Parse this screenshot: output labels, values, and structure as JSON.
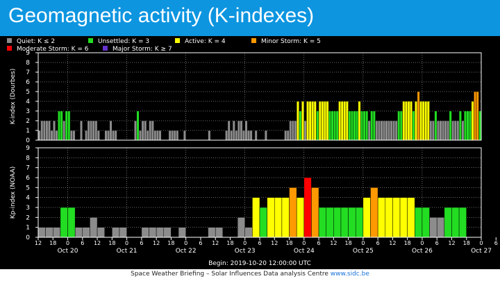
{
  "header": {
    "title": "Geomagnetic activity (K-indexes)"
  },
  "footer": {
    "text": "Space Weather Briefing – Solar Influences Data analysis Centre ",
    "link": "www.sidc.be"
  },
  "chart_data": {
    "type": "bar",
    "legend": [
      {
        "label": "Quiet: K ≤ 2",
        "color": "#8c8c8c"
      },
      {
        "label": "Unsettled: K = 3",
        "color": "#22dd22"
      },
      {
        "label": "Active: K = 4",
        "color": "#ffff00"
      },
      {
        "label": "Minor Storm: K = 5",
        "color": "#ff9900"
      },
      {
        "label": "Moderate Storm: K = 6",
        "color": "#ff0000"
      },
      {
        "label": "Major Storm: K ≥ 7",
        "color": "#6633cc"
      }
    ],
    "legend_placement": "top-left",
    "x_tick_labels": [
      "12",
      "18",
      "0",
      "6",
      "12",
      "18",
      "0",
      "6",
      "12",
      "18",
      "0",
      "6",
      "12",
      "18",
      "0",
      "6",
      "12",
      "18",
      "0",
      "6",
      "12",
      "18",
      "0",
      "6",
      "12",
      "18",
      "0",
      "6",
      "12",
      "18",
      "0",
      "6",
      "12",
      "18",
      "0",
      "6"
    ],
    "date_labels": [
      "Oct 20",
      "Oct 21",
      "Oct 22",
      "Oct 23",
      "Oct 24",
      "Oct 25",
      "Oct 26",
      "Oct 27"
    ],
    "xlabel": "Begin: 2019-10-20 12:00:00 UTC",
    "ylim": [
      0,
      9
    ],
    "y_ticks": [
      0,
      1,
      2,
      3,
      4,
      5,
      6,
      7,
      8,
      9
    ],
    "grid": true,
    "panels": [
      {
        "name": "dourbes",
        "ylabel": "K-index (Dourbes)",
        "resolution_hours": 1,
        "values": [
          1,
          2,
          2,
          2,
          2,
          1,
          2,
          1,
          3,
          3,
          2,
          3,
          3,
          1,
          1,
          0,
          0,
          2,
          0,
          1,
          2,
          2,
          2,
          2,
          1,
          0,
          0,
          1,
          1,
          2,
          1,
          1,
          0,
          0,
          0,
          0,
          0,
          0,
          0,
          2,
          3,
          1,
          2,
          2,
          1,
          2,
          2,
          1,
          1,
          1,
          0,
          0,
          0,
          1,
          1,
          1,
          1,
          0,
          0,
          1,
          0,
          0,
          0,
          0,
          0,
          0,
          0,
          0,
          0,
          1,
          0,
          0,
          0,
          0,
          0,
          0,
          1,
          2,
          1,
          2,
          1,
          2,
          2,
          1,
          2,
          1,
          1,
          0,
          1,
          0,
          0,
          0,
          1,
          0,
          0,
          0,
          0,
          0,
          0,
          0,
          1,
          1,
          2,
          2,
          2,
          4,
          3,
          4,
          2,
          4,
          4,
          4,
          4,
          3,
          4,
          4,
          4,
          4,
          3,
          3,
          3,
          3,
          4,
          4,
          4,
          4,
          3,
          3,
          3,
          3,
          4,
          3,
          3,
          3,
          2,
          3,
          3,
          2,
          2,
          2,
          2,
          2,
          2,
          2,
          2,
          2,
          3,
          3,
          4,
          4,
          4,
          4,
          3,
          4,
          5,
          4,
          4,
          4,
          4,
          2,
          2,
          3,
          2,
          2,
          2,
          2,
          2,
          3,
          2,
          2,
          2,
          3,
          2,
          3,
          3,
          3,
          4,
          5,
          5,
          3
        ]
      },
      {
        "name": "noaa",
        "ylabel": "Kp-index (NOAA)",
        "resolution_hours": 3,
        "values": [
          1,
          1,
          1,
          3,
          3,
          1,
          1,
          2,
          1,
          0,
          1,
          1,
          0,
          0,
          1,
          1,
          1,
          1,
          0,
          1,
          0,
          0,
          0,
          1,
          1,
          0,
          0,
          2,
          1,
          4,
          3,
          4,
          4,
          4,
          5,
          4,
          6,
          5,
          3,
          3,
          3,
          3,
          3,
          3,
          4,
          5,
          4,
          4,
          4,
          4,
          4,
          3,
          3,
          2,
          2,
          3,
          3,
          3
        ]
      }
    ]
  }
}
